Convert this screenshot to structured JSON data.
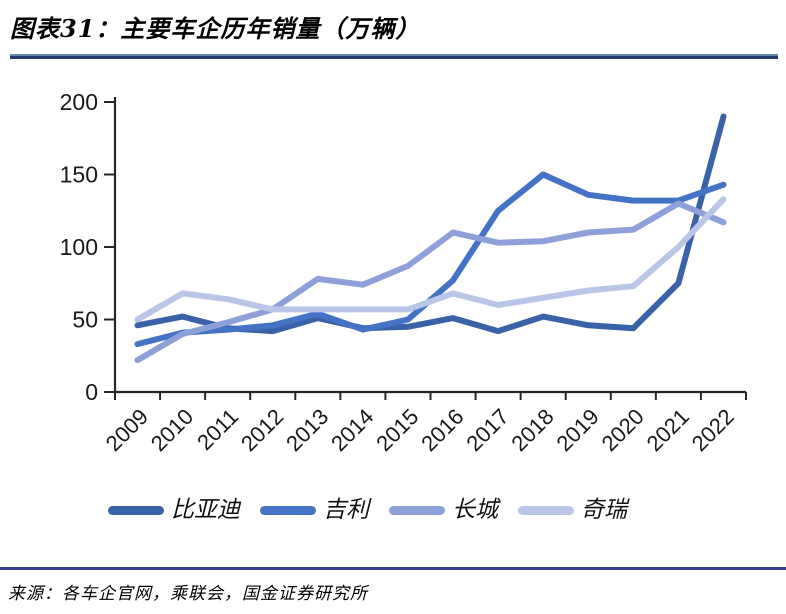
{
  "header": {
    "title": "图表31：主要车企历年销量（万辆）"
  },
  "chart_data": {
    "type": "line",
    "title": "主要车企历年销量（万辆）",
    "unit": "万辆",
    "categories": [
      "2009",
      "2010",
      "2011",
      "2012",
      "2013",
      "2014",
      "2015",
      "2016",
      "2017",
      "2018",
      "2019",
      "2020",
      "2021",
      "2022"
    ],
    "series": [
      {
        "name": "比亚迪",
        "color": "#3a62a8",
        "values": [
          46,
          52,
          44,
          42,
          51,
          44,
          45,
          51,
          42,
          52,
          46,
          44,
          75,
          190
        ]
      },
      {
        "name": "吉利",
        "color": "#4472c4",
        "values": [
          33,
          41,
          43,
          46,
          54,
          43,
          50,
          77,
          125,
          150,
          136,
          132,
          132,
          143
        ]
      },
      {
        "name": "长城",
        "color": "#8da0d8",
        "values": [
          22,
          40,
          48,
          57,
          78,
          74,
          87,
          110,
          103,
          104,
          110,
          112,
          130,
          117
        ]
      },
      {
        "name": "奇瑞",
        "color": "#bac6e8",
        "values": [
          50,
          68,
          64,
          57,
          57,
          57,
          57,
          68,
          60,
          65,
          70,
          73,
          100,
          133
        ]
      }
    ],
    "ylim": [
      0,
      200
    ],
    "yticks": [
      0,
      50,
      100,
      150,
      200
    ],
    "grid": false,
    "legend_position": "bottom",
    "axis_color": "#262626"
  },
  "footer": {
    "source": "来源：各车企官网，乘联会，国金证券研究所"
  }
}
